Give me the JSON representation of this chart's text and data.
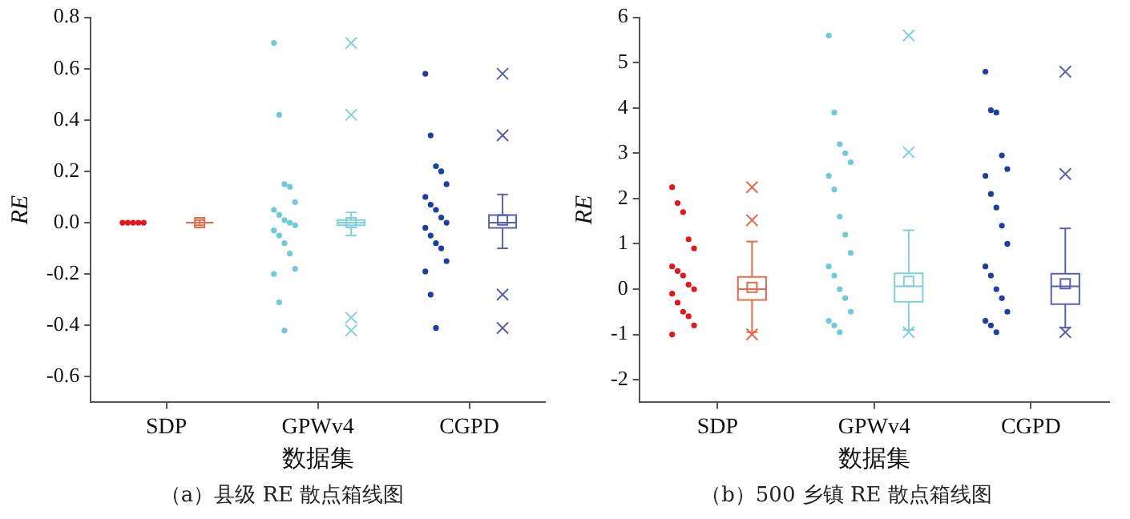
{
  "chart_data": [
    {
      "type": "box",
      "title": "（a）县级 RE 散点箱线图",
      "xlabel": "数据集",
      "ylabel": "RE",
      "categories": [
        "SDP",
        "GPWv4",
        "CGPD"
      ],
      "ylim": [
        -0.7,
        0.8
      ],
      "yticks": [
        -0.6,
        -0.4,
        -0.2,
        {
          "value": 0,
          "label": "0.0"
        },
        0.2,
        0.4,
        0.6,
        0.8
      ],
      "series": [
        {
          "type": "scatter",
          "color": "#e8161b",
          "x": [
            "SDP",
            "SDP",
            "SDP",
            "SDP",
            "SDP"
          ],
          "values": [
            0,
            0,
            0,
            0,
            0
          ]
        },
        {
          "type": "scatter",
          "color": "#6ecbd8",
          "x": [
            "GPWv4",
            "GPWv4",
            "GPWv4",
            "GPWv4",
            "GPWv4",
            "GPWv4",
            "GPWv4",
            "GPWv4",
            "GPWv4",
            "GPWv4",
            "GPWv4",
            "GPWv4",
            "GPWv4",
            "GPWv4",
            "GPWv4",
            "GPWv4",
            "GPWv4",
            "GPWv4"
          ],
          "values": [
            0.7,
            0.42,
            0.15,
            0.14,
            0.08,
            0.05,
            0.03,
            0.01,
            0,
            -0.01,
            -0.03,
            -0.05,
            -0.08,
            -0.12,
            -0.18,
            -0.2,
            -0.31,
            -0.42
          ]
        },
        {
          "type": "scatter",
          "color": "#1f3e9e",
          "x": [
            "CGPD",
            "CGPD",
            "CGPD",
            "CGPD",
            "CGPD",
            "CGPD",
            "CGPD",
            "CGPD",
            "CGPD",
            "CGPD",
            "CGPD",
            "CGPD",
            "CGPD",
            "CGPD",
            "CGPD",
            "CGPD",
            "CGPD",
            "CGPD"
          ],
          "values": [
            0.58,
            0.34,
            0.22,
            0.2,
            0.15,
            0.1,
            0.07,
            0.05,
            0.02,
            0,
            -0.02,
            -0.05,
            -0.08,
            -0.1,
            -0.15,
            -0.19,
            -0.28,
            -0.41
          ]
        },
        {
          "type": "box",
          "colors": [
            "#e86a4a",
            "#7fd0dc",
            "#5b5fb0"
          ],
          "boxes": [
            {
              "low": -0.01,
              "q1": 0,
              "median": 0,
              "q3": 0,
              "high": 0.01,
              "mean": 0
            },
            {
              "low": -0.05,
              "q1": -0.01,
              "median": 0,
              "q3": 0.01,
              "high": 0.04,
              "mean": 0,
              "outliers": [
                0.7,
                0.42,
                -0.37,
                -0.42
              ]
            },
            {
              "low": -0.1,
              "q1": -0.02,
              "median": 0,
              "q3": 0.03,
              "high": 0.11,
              "mean": 0.01,
              "outliers": [
                0.58,
                0.34,
                -0.28,
                -0.41
              ]
            }
          ]
        }
      ]
    },
    {
      "type": "box",
      "title": "（b）500 乡镇 RE 散点箱线图",
      "xlabel": "数据集",
      "ylabel": "RE",
      "categories": [
        "SDP",
        "GPWv4",
        "CGPD"
      ],
      "ylim": [
        -2.5,
        6
      ],
      "yticks": [
        -2,
        -1,
        0,
        1,
        2,
        3,
        4,
        5,
        6
      ],
      "series": [
        {
          "type": "scatter",
          "color": "#e8161b",
          "x": [
            "SDP",
            "SDP",
            "SDP",
            "SDP",
            "SDP",
            "SDP",
            "SDP",
            "SDP",
            "SDP",
            "SDP",
            "SDP",
            "SDP",
            "SDP",
            "SDP",
            "SDP",
            "SDP"
          ],
          "values": [
            2.25,
            1.9,
            1.7,
            1.1,
            0.9,
            0.5,
            0.4,
            0.3,
            0.1,
            0,
            -0.1,
            -0.3,
            -0.5,
            -0.6,
            -0.8,
            -1.0
          ]
        },
        {
          "type": "scatter",
          "color": "#6ecbd8",
          "x": [
            "GPWv4",
            "GPWv4",
            "GPWv4",
            "GPWv4",
            "GPWv4",
            "GPWv4",
            "GPWv4",
            "GPWv4",
            "GPWv4",
            "GPWv4",
            "GPWv4",
            "GPWv4",
            "GPWv4",
            "GPWv4",
            "GPWv4",
            "GPWv4",
            "GPWv4",
            "GPWv4"
          ],
          "values": [
            5.6,
            3.9,
            3.2,
            3.0,
            2.8,
            2.5,
            2.2,
            1.6,
            1.2,
            0.8,
            0.5,
            0.3,
            0,
            -0.2,
            -0.5,
            -0.7,
            -0.8,
            -0.95
          ]
        },
        {
          "type": "scatter",
          "color": "#1f3e9e",
          "x": [
            "CGPD",
            "CGPD",
            "CGPD",
            "CGPD",
            "CGPD",
            "CGPD",
            "CGPD",
            "CGPD",
            "CGPD",
            "CGPD",
            "CGPD",
            "CGPD",
            "CGPD",
            "CGPD",
            "CGPD",
            "CGPD",
            "CGPD",
            "CGPD"
          ],
          "values": [
            4.8,
            3.95,
            3.9,
            2.95,
            2.65,
            2.5,
            2.1,
            1.8,
            1.4,
            1.0,
            0.5,
            0.3,
            0,
            -0.2,
            -0.5,
            -0.7,
            -0.8,
            -0.95
          ]
        },
        {
          "type": "box",
          "colors": [
            "#e86a4a",
            "#7fd0dc",
            "#5b5fb0"
          ],
          "boxes": [
            {
              "low": -0.95,
              "q1": -0.24,
              "median": 0,
              "q3": 0.27,
              "high": 1.05,
              "mean": 0.04,
              "outliers": [
                2.25,
                1.52,
                -1.0
              ]
            },
            {
              "low": -0.9,
              "q1": -0.28,
              "median": 0.06,
              "q3": 0.35,
              "high": 1.3,
              "mean": 0.17,
              "outliers": [
                5.6,
                3.02,
                -0.95
              ]
            },
            {
              "low": -0.85,
              "q1": -0.33,
              "median": 0.06,
              "q3": 0.34,
              "high": 1.34,
              "mean": 0.12,
              "outliers": [
                4.8,
                2.54,
                -0.95
              ]
            }
          ]
        }
      ]
    }
  ]
}
